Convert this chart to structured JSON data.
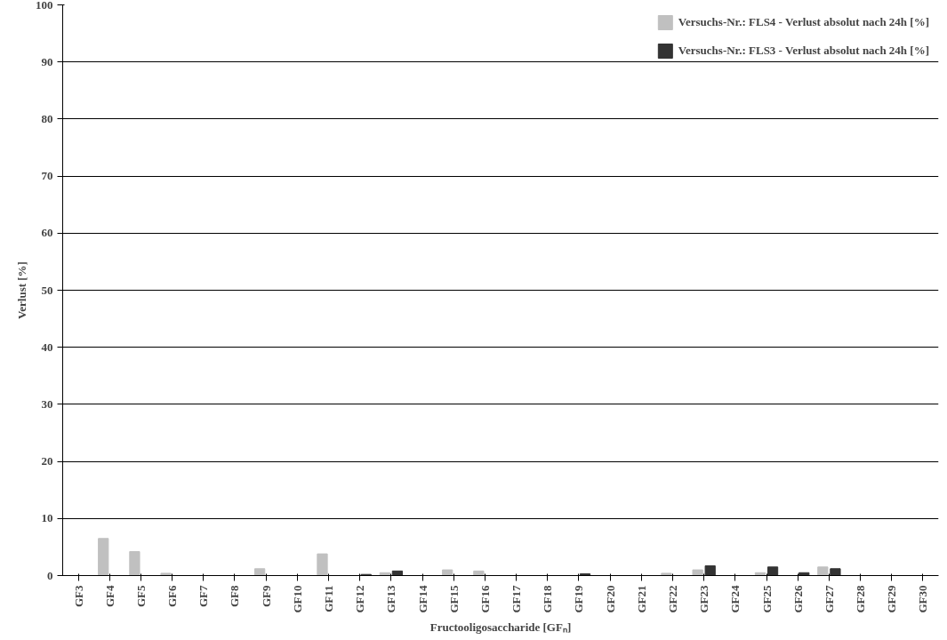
{
  "chart_data": {
    "type": "bar",
    "xlabel": "Fructooligosaccharide [GFₙ]",
    "ylabel": "Verlust [%]",
    "categories": [
      "GF3",
      "GF4",
      "GF5",
      "GF6",
      "GF7",
      "GF8",
      "GF9",
      "GF10",
      "GF11",
      "GF12",
      "GF13",
      "GF14",
      "GF15",
      "GF16",
      "GF17",
      "GF18",
      "GF19",
      "GF20",
      "GF21",
      "GF22",
      "GF23",
      "GF24",
      "GF25",
      "GF26",
      "GF27",
      "GF28",
      "GF29",
      "GF30"
    ],
    "series": [
      {
        "name": "Versuchs-Nr.: FLS4 - Verlust absolut nach 24h [%]",
        "color": "#c0c0c0",
        "values": [
          0,
          6.5,
          4.2,
          0.4,
          0,
          0,
          1.2,
          0,
          3.8,
          0,
          0.5,
          0,
          1.0,
          0.8,
          0,
          0,
          0,
          0,
          0,
          0.4,
          1.0,
          0,
          0.5,
          0,
          1.5,
          0,
          0,
          0
        ]
      },
      {
        "name": "Versuchs-Nr.: FLS3 - Verlust absolut nach 24h [%]",
        "color": "#333333",
        "values": [
          0,
          0,
          0,
          0,
          0,
          0,
          0,
          0,
          0,
          0.2,
          0.8,
          0,
          0,
          0,
          0,
          0,
          0.3,
          0,
          0,
          0,
          1.7,
          0,
          1.5,
          0.5,
          1.2,
          0,
          0,
          0
        ]
      }
    ],
    "ylim": [
      0,
      100
    ],
    "yticks": [
      0,
      10,
      20,
      30,
      40,
      50,
      60,
      70,
      80,
      90,
      100
    ],
    "grid": "y",
    "legend": "top right"
  }
}
